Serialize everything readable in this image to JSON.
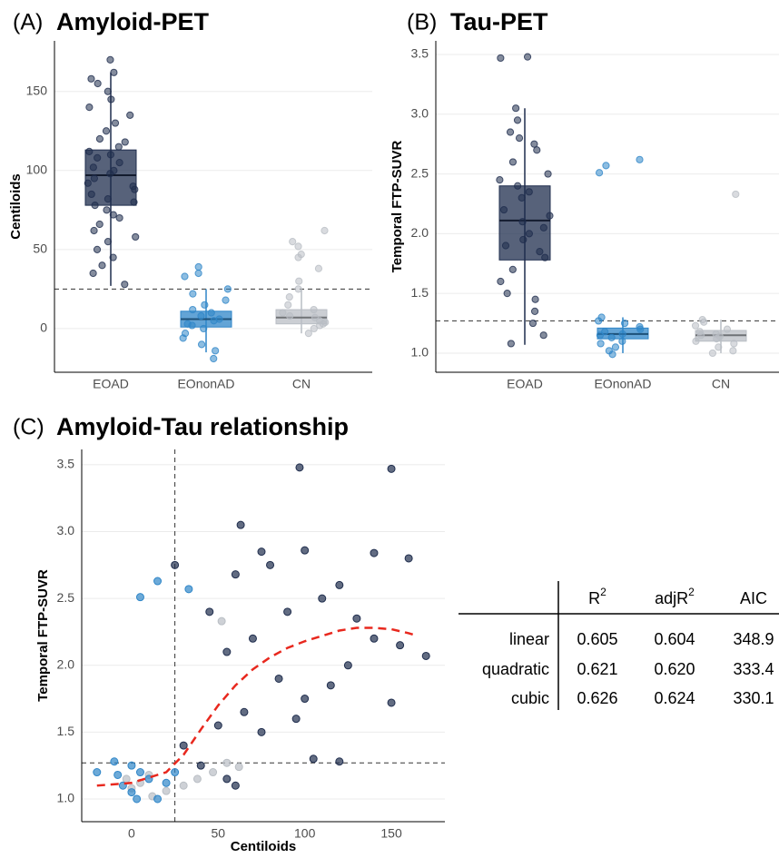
{
  "chart_data": [
    {
      "type": "box",
      "panel": "(A)",
      "title": "Amyloid-PET",
      "y_label": "Centiloids",
      "categories": [
        "EOAD",
        "EOnonAD",
        "CN"
      ],
      "colors": [
        "#1f2d4d",
        "#2f86c8",
        "#b9bec4"
      ],
      "boxes": [
        {
          "min": 27,
          "q1": 78,
          "median": 97,
          "q3": 113,
          "max": 162
        },
        {
          "min": -15,
          "q1": 1,
          "median": 6,
          "q3": 11,
          "max": 25
        },
        {
          "min": -3,
          "q1": 3,
          "median": 7,
          "q3": 12,
          "max": 25
        }
      ],
      "points": [
        [
          170,
          162,
          158,
          155,
          150,
          145,
          140,
          135,
          130,
          125,
          120,
          118,
          115,
          112,
          110,
          108,
          105,
          102,
          100,
          98,
          95,
          92,
          90,
          88,
          85,
          82,
          80,
          78,
          75,
          72,
          70,
          66,
          62,
          58,
          55,
          50,
          45,
          40,
          35,
          28
        ],
        [
          39,
          35,
          33,
          25,
          22,
          18,
          15,
          12,
          10,
          8,
          6,
          5,
          3,
          2,
          0,
          -3,
          -6,
          -10,
          -14,
          -19
        ],
        [
          62,
          55,
          52,
          47,
          45,
          38,
          30,
          25,
          20,
          15,
          12,
          10,
          8,
          7,
          5,
          4,
          3,
          2,
          0,
          -3
        ]
      ],
      "hline": 25,
      "ylim": [
        -27.6,
        182
      ],
      "yticks": [
        0,
        50,
        100,
        150
      ],
      "grid": true
    },
    {
      "type": "box",
      "panel": "(B)",
      "title": "Tau-PET",
      "y_label": "Temporal FTP-SUVR",
      "categories": [
        "EOAD",
        "EOnonAD",
        "CN"
      ],
      "colors": [
        "#1f2d4d",
        "#2f86c8",
        "#b9bec4"
      ],
      "boxes": [
        {
          "min": 1.07,
          "q1": 1.78,
          "median": 2.11,
          "q3": 2.4,
          "max": 3.05
        },
        {
          "min": 1.0,
          "q1": 1.12,
          "median": 1.16,
          "q3": 1.21,
          "max": 1.3
        },
        {
          "min": 1.0,
          "q1": 1.1,
          "median": 1.15,
          "q3": 1.19,
          "max": 1.28
        }
      ],
      "points": [
        [
          3.48,
          3.47,
          3.05,
          2.95,
          2.85,
          2.8,
          2.75,
          2.7,
          2.6,
          2.5,
          2.45,
          2.4,
          2.35,
          2.3,
          2.2,
          2.15,
          2.1,
          2.05,
          2.0,
          1.95,
          1.9,
          1.85,
          1.8,
          1.7,
          1.6,
          1.5,
          1.45,
          1.35,
          1.25,
          1.15,
          1.08
        ],
        [
          2.62,
          2.57,
          2.51,
          1.3,
          1.27,
          1.25,
          1.22,
          1.2,
          1.18,
          1.16,
          1.15,
          1.13,
          1.1,
          1.08,
          1.05,
          1.02,
          0.99
        ],
        [
          2.33,
          1.28,
          1.26,
          1.23,
          1.2,
          1.18,
          1.16,
          1.15,
          1.14,
          1.12,
          1.1,
          1.08,
          1.05,
          1.02,
          1.0
        ]
      ],
      "hline": 1.27,
      "ylim": [
        0.84,
        3.614
      ],
      "yticks": [
        {
          "value": 1,
          "label": "1.0"
        },
        {
          "value": 1.5,
          "label": "1.5"
        },
        {
          "value": 2,
          "label": "2.0"
        },
        {
          "value": 2.5,
          "label": "2.5"
        },
        {
          "value": 3,
          "label": "3.0"
        },
        {
          "value": 3.5,
          "label": "3.5"
        }
      ],
      "grid": true
    },
    {
      "type": "scatter",
      "panel": "(C)",
      "title": "Amyloid-Tau relationship",
      "x_label": "Centiloids",
      "y_label": "Temporal FTP-SUVR",
      "series": [
        {
          "color": "#1f2d4d",
          "x": [
            97,
            150,
            63,
            75,
            100,
            140,
            60,
            80,
            120,
            110,
            90,
            130,
            160,
            170,
            150,
            45,
            55,
            70,
            85,
            100,
            115,
            125,
            65,
            75,
            95,
            105,
            120,
            50,
            40,
            60,
            55,
            30,
            25,
            140,
            155
          ],
          "y": [
            3.48,
            3.47,
            3.05,
            2.85,
            2.86,
            2.84,
            2.68,
            2.75,
            2.6,
            2.5,
            2.4,
            2.35,
            2.8,
            2.07,
            1.72,
            2.4,
            2.1,
            2.2,
            1.9,
            1.75,
            1.85,
            2.0,
            1.65,
            1.5,
            1.6,
            1.3,
            1.28,
            1.55,
            1.25,
            1.1,
            1.15,
            1.4,
            2.75,
            2.2,
            2.15
          ]
        },
        {
          "color": "#b9bec4",
          "x": [
            62,
            55,
            47,
            38,
            30,
            20,
            10,
            5,
            0,
            -3,
            12,
            52
          ],
          "y": [
            1.24,
            1.27,
            1.2,
            1.15,
            1.1,
            1.06,
            1.18,
            1.12,
            1.08,
            1.15,
            1.02,
            2.33
          ]
        },
        {
          "color": "#2f86c8",
          "x": [
            5,
            15,
            33,
            -20,
            -10,
            0,
            5,
            10,
            -5,
            0,
            15,
            20,
            25,
            -8,
            3
          ],
          "y": [
            2.51,
            2.63,
            2.57,
            1.2,
            1.28,
            1.25,
            1.2,
            1.15,
            1.1,
            1.05,
            1.0,
            1.12,
            1.2,
            1.18,
            1.0
          ]
        }
      ],
      "fit": {
        "color": "#e8281e",
        "x": [
          -20,
          0,
          10,
          20,
          30,
          40,
          50,
          60,
          70,
          80,
          90,
          100,
          110,
          120,
          130,
          140,
          150,
          160,
          165
        ],
        "y": [
          1.1,
          1.12,
          1.16,
          1.2,
          1.33,
          1.52,
          1.7,
          1.85,
          1.97,
          2.06,
          2.13,
          2.18,
          2.22,
          2.26,
          2.28,
          2.28,
          2.27,
          2.24,
          2.22
        ]
      },
      "hline": 1.27,
      "vline": 25,
      "xlim": [
        -28.8,
        180.9
      ],
      "ylim": [
        0.83,
        3.615
      ],
      "xticks": [
        0,
        50,
        100,
        150
      ],
      "yticks": [
        {
          "value": 1,
          "label": "1.0"
        },
        {
          "value": 1.5,
          "label": "1.5"
        },
        {
          "value": 2,
          "label": "2.0"
        },
        {
          "value": 2.5,
          "label": "2.5"
        },
        {
          "value": 3,
          "label": "3.0"
        },
        {
          "value": 3.5,
          "label": "3.5"
        }
      ],
      "grid": true
    }
  ],
  "table": {
    "header": [
      {
        "text": "R",
        "sup": "2"
      },
      {
        "text": "adjR",
        "sup": "2"
      },
      {
        "text": "AIC"
      }
    ],
    "rows": [
      [
        "linear",
        "0.605",
        "0.604",
        "348.9"
      ],
      [
        "quadratic",
        "0.621",
        "0.620",
        "333.4"
      ],
      [
        "cubic",
        "0.626",
        "0.624",
        "330.1"
      ]
    ]
  }
}
